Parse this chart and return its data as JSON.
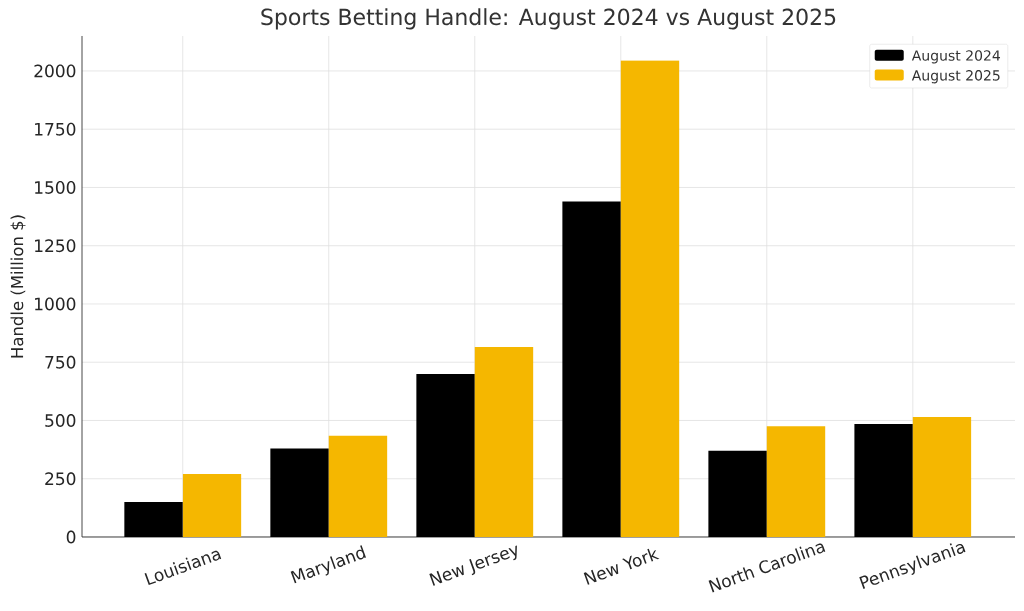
{
  "chart_data": {
    "type": "bar",
    "title": "Sports Betting Handle: August 2024 vs August 2025",
    "ylabel": "Handle (Million $)",
    "categories": [
      "Louisiana",
      "Maryland",
      "New Jersey",
      "New York",
      "North Carolina",
      "Pennsylvania"
    ],
    "series": [
      {
        "name": "August 2024",
        "color": "#000000",
        "values": [
          150,
          380,
          700,
          1440,
          370,
          485
        ]
      },
      {
        "name": "August 2025",
        "color": "#f5b700",
        "values": [
          270,
          435,
          815,
          2045,
          475,
          515
        ]
      }
    ],
    "ylim": [
      0,
      2150
    ],
    "yticks": [
      0,
      250,
      500,
      750,
      1000,
      1250,
      1500,
      1750,
      2000
    ],
    "grid": true,
    "legend": "top right"
  }
}
